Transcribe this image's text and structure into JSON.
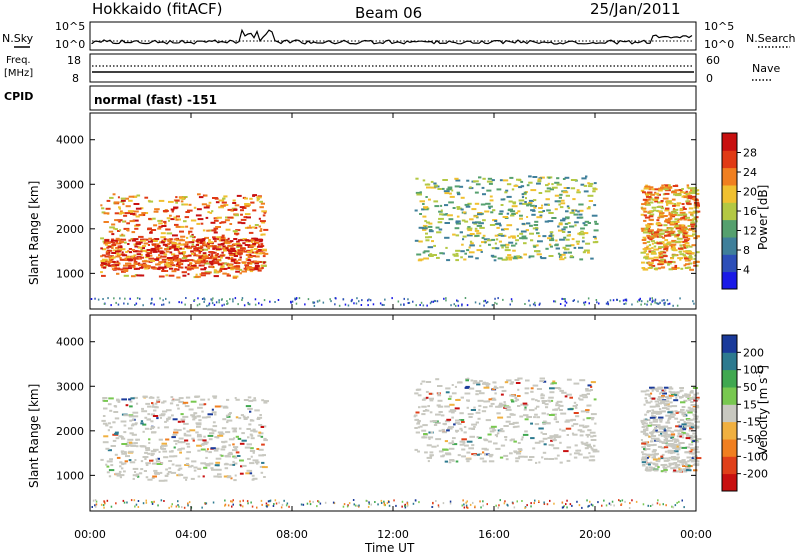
{
  "header": {
    "title": "Hokkaido (fitACF)",
    "beam": "Beam 06",
    "date": "25/Jan/2011"
  },
  "top_panels": {
    "nsky_label": "N.Sky",
    "nsearch_label": "N.Search",
    "nsky_ticks": [
      "10^5",
      "10^0"
    ],
    "freq_label_1": "Freq.",
    "freq_label_2": "[MHz]",
    "freq_ticks": [
      "18",
      "8"
    ],
    "nave_ticks": [
      "60",
      "0"
    ],
    "nave_label": "Nave",
    "cpid_label": "CPID",
    "cpid_value": "normal (fast) -151"
  },
  "colors": {
    "power_bins": [
      "#1a1ae6",
      "#2d4fb8",
      "#3f7f9a",
      "#55a06e",
      "#b3c843",
      "#f0c030",
      "#f07f20",
      "#e03a15",
      "#c81010"
    ],
    "velocity_bins": [
      "#c81010",
      "#e0401a",
      "#f07f20",
      "#f0b040",
      "#c8c8c0",
      "#78c850",
      "#40a850",
      "#2d7a8f",
      "#1a3a9a"
    ]
  },
  "chart_data": [
    {
      "type": "heatmap",
      "name": "power",
      "ylabel": "Slant Range [km]",
      "yticks": [
        "4000",
        "3000",
        "2000",
        "1000"
      ],
      "ylim": [
        200,
        4600
      ],
      "xlim_hours": [
        0,
        24
      ],
      "xticks": [
        "00:00",
        "04:00",
        "08:00",
        "12:00",
        "16:00",
        "20:00",
        "00:00"
      ],
      "colorbar_label": "Power [dB]",
      "colorbar_ticks": [
        "28",
        "24",
        "20",
        "16",
        "12",
        "8",
        "4"
      ],
      "colorbar_range": [
        0,
        32
      ],
      "echo_regions": [
        {
          "t0": 0.4,
          "t1": 6.9,
          "r0": 900,
          "r1": 2800,
          "level": 24
        },
        {
          "t0": 0.4,
          "t1": 6.9,
          "r0": 1100,
          "r1": 1800,
          "level": 28
        },
        {
          "t0": 12.8,
          "t1": 20.0,
          "r0": 1300,
          "r1": 3200,
          "level": 14
        },
        {
          "t0": 21.8,
          "t1": 24.0,
          "r0": 1100,
          "r1": 3000,
          "level": 22
        }
      ]
    },
    {
      "type": "heatmap",
      "name": "velocity",
      "ylabel": "Slant Range [km]",
      "yticks": [
        "4000",
        "3000",
        "2000",
        "1000"
      ],
      "ylim": [
        200,
        4600
      ],
      "xlim_hours": [
        0,
        24
      ],
      "xticks": [
        "00:00",
        "04:00",
        "08:00",
        "12:00",
        "16:00",
        "20:00",
        "00:00"
      ],
      "xlabel": "Time UT",
      "colorbar_label": "Velocity [m s",
      "colorbar_label_sup": "-1",
      "colorbar_ticks": [
        "200",
        "100",
        "50",
        "15",
        "-15",
        "-50",
        "-100",
        "-200"
      ],
      "colorbar_range": [
        -250,
        250
      ],
      "echo_regions": [
        {
          "t0": 0.4,
          "t1": 6.9,
          "r0": 900,
          "r1": 2800,
          "level": 0
        },
        {
          "t0": 12.8,
          "t1": 20.0,
          "r0": 1300,
          "r1": 3200,
          "level": 0
        },
        {
          "t0": 21.8,
          "t1": 24.0,
          "r0": 1100,
          "r1": 3000,
          "level": 0
        }
      ]
    }
  ]
}
